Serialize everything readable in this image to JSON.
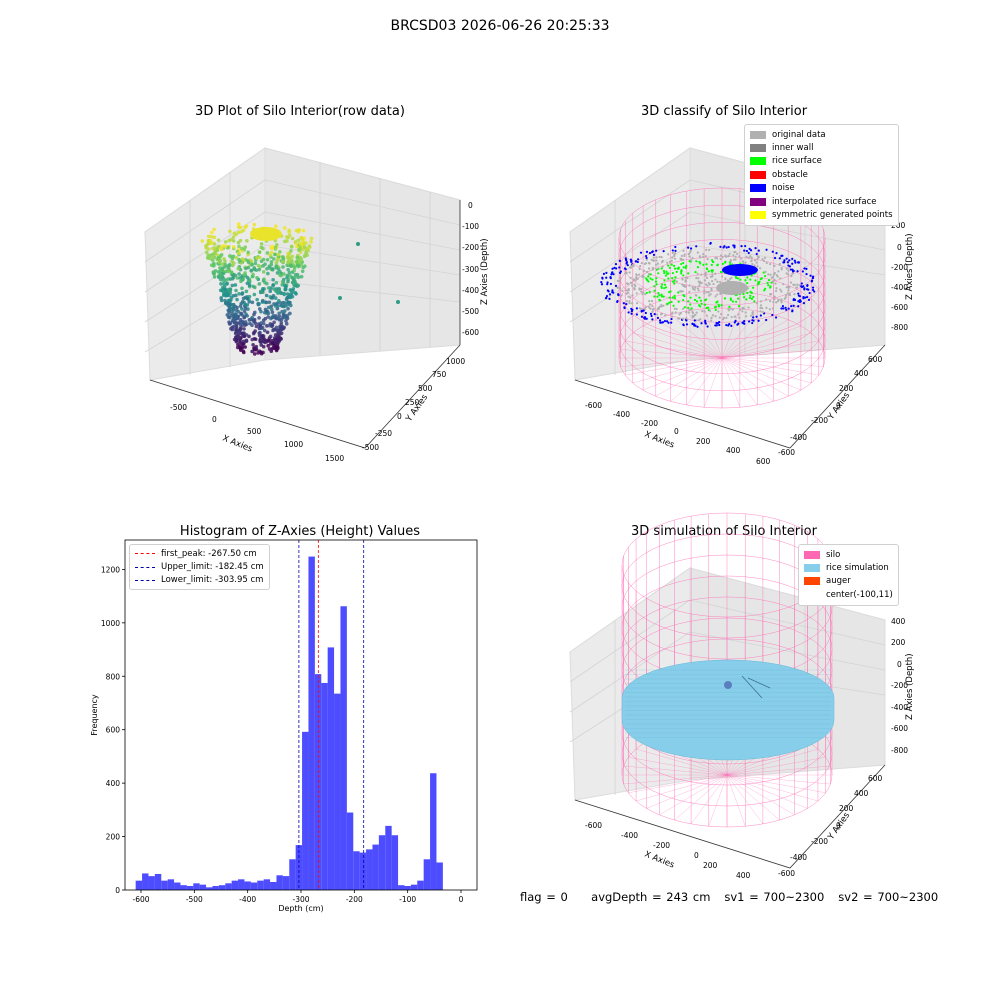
{
  "suptitle": "BRCSD03 2026-06-26 20:25:33",
  "footer": {
    "flag": "flag = 0",
    "avg_depth": "avgDepth = 243 cm",
    "sv1": "sv1 = 700~2300",
    "sv2": "sv2 = 700~2300"
  },
  "chart_data": [
    {
      "id": "raw",
      "type": "scatter",
      "title": "3D Plot of Silo Interior(row data)",
      "xlabel": "X Axies",
      "ylabel": "Y Axies",
      "zlabel": "Z Axies (Depth)",
      "x_ticks": [
        "-500",
        "0",
        "500",
        "1000",
        "1500"
      ],
      "y_ticks": [
        "-500",
        "-250",
        "0",
        "250",
        "500",
        "750",
        "1000"
      ],
      "z_ticks": [
        "0",
        "-100",
        "-200",
        "-300",
        "-400",
        "-500",
        "-600"
      ],
      "colormap": "viridis",
      "description_points": "ring of points around x~0, y~0 spanning depth -600 to -50, plus three outliers near x~1000"
    },
    {
      "id": "classify",
      "type": "scatter",
      "title": "3D classify of Silo Interior",
      "xlabel": "X Axies",
      "ylabel": "Y Axies",
      "zlabel": "Z Axies (Depth)",
      "x_ticks": [
        "-600",
        "-400",
        "-200",
        "0",
        "200",
        "400",
        "600"
      ],
      "y_ticks": [
        "-600",
        "-400",
        "-200",
        "0",
        "200",
        "400",
        "600"
      ],
      "z_ticks": [
        "200",
        "0",
        "-200",
        "-400",
        "-600",
        "-800"
      ],
      "legend": [
        {
          "label": "original data",
          "color": "#b0b0b0"
        },
        {
          "label": "inner wall",
          "color": "#808080"
        },
        {
          "label": "rice surface",
          "color": "#00ff00"
        },
        {
          "label": "obstacle",
          "color": "#ff0000"
        },
        {
          "label": "noise",
          "color": "#0000ff"
        },
        {
          "label": "interpolated rice surface",
          "color": "#800080"
        },
        {
          "label": "symmetric generated points",
          "color": "#ffff00"
        }
      ],
      "wire_color": "#ff69b4"
    },
    {
      "id": "histogram",
      "type": "bar",
      "title": "Histogram of Z-Axies (Height) Values",
      "xlabel": "Depth (cm)",
      "ylabel": "Frequency",
      "xlim": [
        -630,
        30
      ],
      "ylim": [
        0,
        1310
      ],
      "x_ticks": [
        -600,
        -500,
        -400,
        -300,
        -200,
        -100,
        0
      ],
      "y_ticks": [
        0,
        200,
        400,
        600,
        800,
        1000,
        1200
      ],
      "bar_color": "#4040ff",
      "bin_start": -610,
      "bin_width": 12,
      "values": [
        35,
        62,
        52,
        60,
        35,
        40,
        28,
        18,
        15,
        25,
        20,
        10,
        15,
        18,
        25,
        35,
        40,
        32,
        28,
        35,
        40,
        30,
        55,
        52,
        115,
        168,
        592,
        1248,
        808,
        775,
        908,
        735,
        1062,
        290,
        145,
        140,
        152,
        170,
        205,
        240,
        205,
        18,
        15,
        20,
        35,
        115,
        437,
        103
      ],
      "vlines": [
        {
          "label": "first_peak: -267.50 cm",
          "x": -267.5,
          "color": "#ff0000"
        },
        {
          "label": "Upper_limit: -182.45 cm",
          "x": -182.45,
          "color": "#0000aa"
        },
        {
          "label": "Lower_limit: -303.95 cm",
          "x": -303.95,
          "color": "#0000aa"
        }
      ]
    },
    {
      "id": "simulation",
      "type": "scatter",
      "title": "3D simulation of Silo Interior",
      "xlabel": "X Axies",
      "ylabel": "Y Axies",
      "zlabel": "Z Axies (Depth)",
      "x_ticks": [
        "-600",
        "-400",
        "-200",
        "0",
        "200",
        "400"
      ],
      "y_ticks": [
        "-600",
        "-400",
        "-200",
        "0",
        "200",
        "400",
        "600"
      ],
      "z_ticks": [
        "400",
        "200",
        "0",
        "-200",
        "-400",
        "-600",
        "-800"
      ],
      "legend": [
        {
          "label": "silo",
          "color": "#ff69b4"
        },
        {
          "label": "rice simulation",
          "color": "#87ceeb"
        },
        {
          "label": "auger",
          "color": "#ff4500"
        },
        {
          "label": "center(-100,11)",
          "color": ""
        }
      ]
    }
  ]
}
